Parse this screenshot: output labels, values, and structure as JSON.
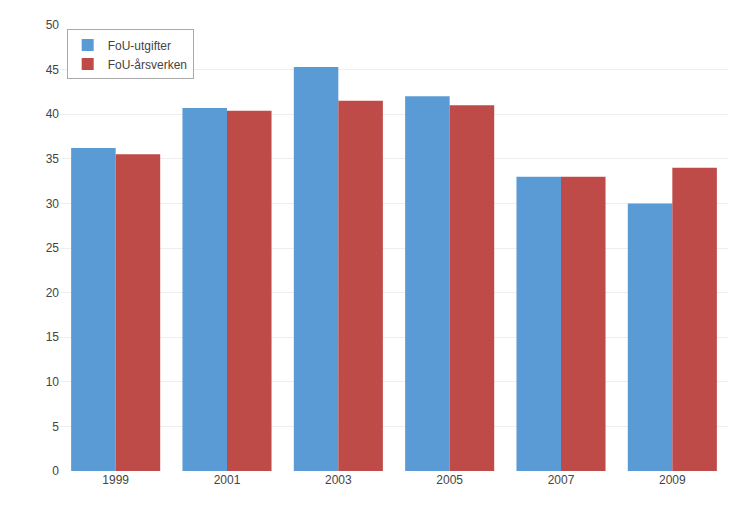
{
  "chart_data": {
    "type": "bar",
    "categories": [
      "1999",
      "2001",
      "2003",
      "2005",
      "2007",
      "2009"
    ],
    "series": [
      {
        "name": "FoU-utgifter",
        "color": "#5B9BD5",
        "values": [
          36.2,
          40.7,
          45.3,
          42.0,
          33.0,
          30.0
        ]
      },
      {
        "name": "FoU-årsverken",
        "color": "#BE4B48",
        "values": [
          35.5,
          40.4,
          41.5,
          41.0,
          33.0,
          34.0
        ]
      }
    ],
    "ylim": [
      0,
      50
    ],
    "yticks": [
      0,
      5,
      10,
      15,
      20,
      25,
      30,
      35,
      40,
      45,
      50
    ],
    "grid": true,
    "legend": "upper left"
  }
}
